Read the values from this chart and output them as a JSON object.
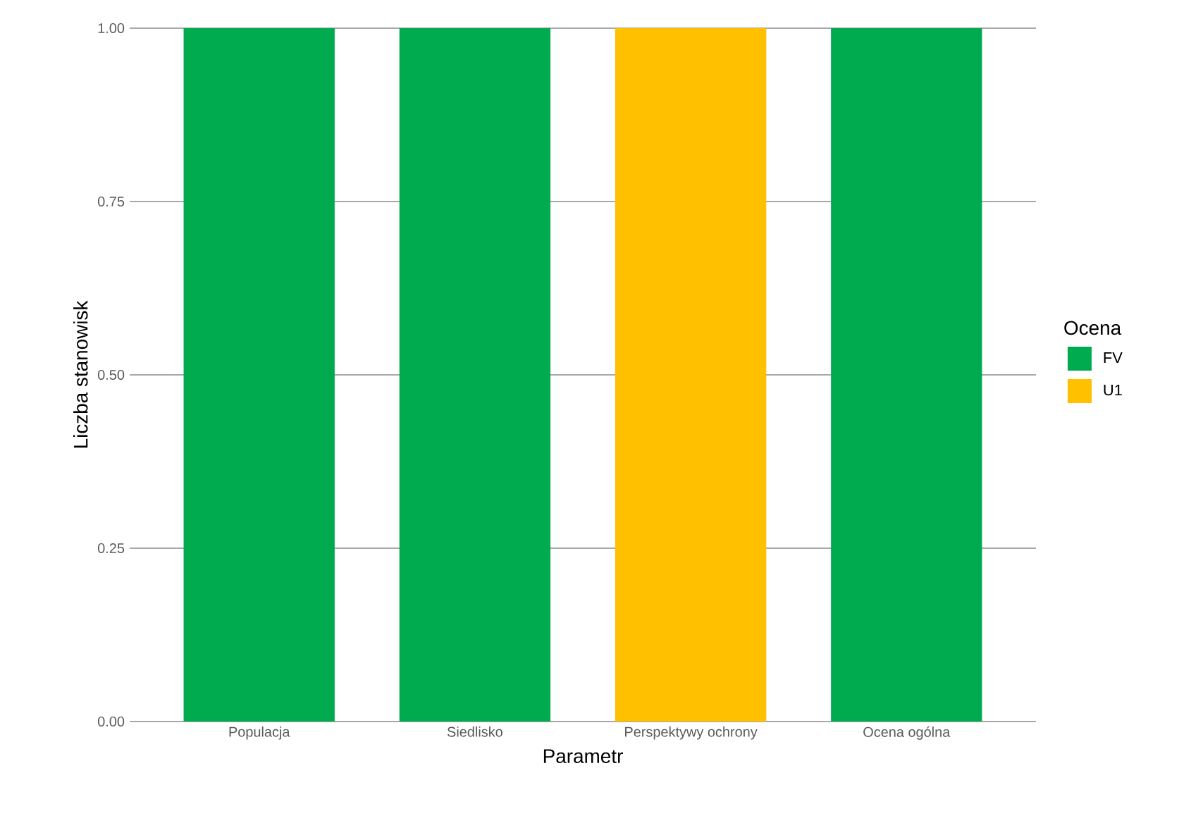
{
  "chart_data": {
    "type": "bar",
    "stacked": true,
    "xlabel": "Parametr",
    "ylabel": "Liczba stanowisk",
    "legend_title": "Ocena",
    "categories": [
      "Populacja",
      "Siedlisko",
      "Perspektywy ochrony",
      "Ocena ogólna"
    ],
    "series": [
      {
        "name": "FV",
        "color": "#00aa4f",
        "values": [
          1,
          1,
          0,
          1
        ]
      },
      {
        "name": "U1",
        "color": "#ffc000",
        "values": [
          0,
          0,
          1,
          0
        ]
      }
    ],
    "ylim": [
      0,
      1
    ],
    "yticks": [
      {
        "value": 0,
        "label": "0.00"
      },
      {
        "value": 0.25,
        "label": "0.25"
      },
      {
        "value": 0.5,
        "label": "0.50"
      },
      {
        "value": 0.75,
        "label": "0.75"
      },
      {
        "value": 1,
        "label": "1.00"
      }
    ],
    "grid": "y",
    "legend": "right"
  }
}
